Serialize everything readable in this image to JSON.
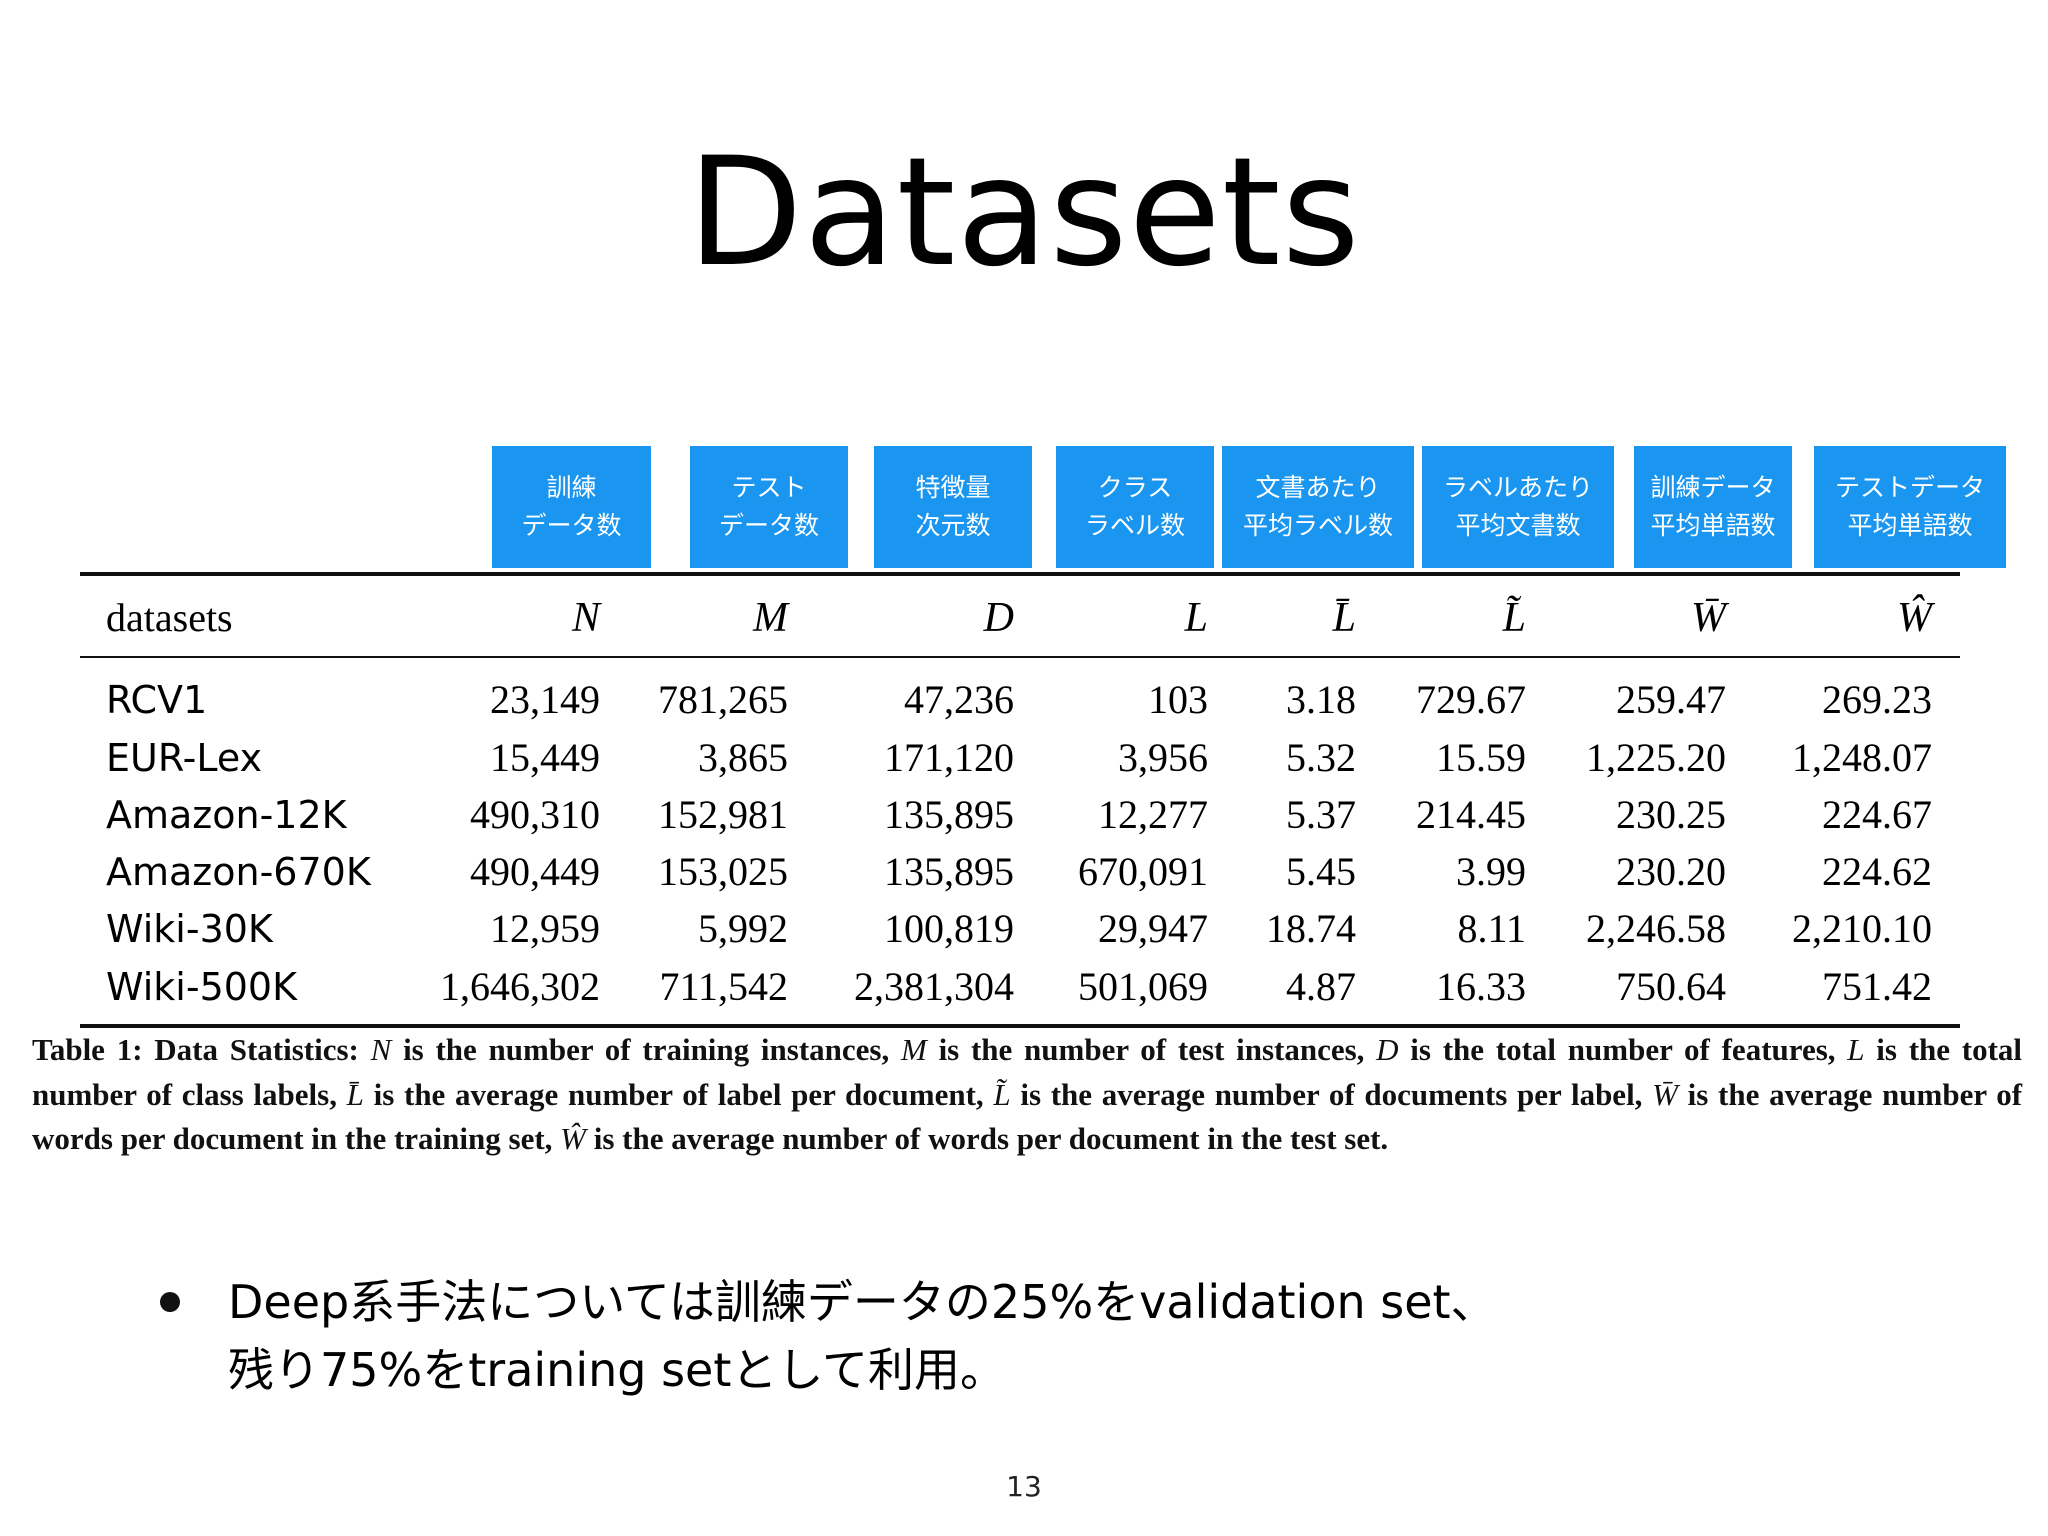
{
  "slide": {
    "title": "Datasets",
    "page_number": "13"
  },
  "annotations": [
    {
      "line1": "訓練",
      "line2": "データ数"
    },
    {
      "line1": "テスト",
      "line2": "データ数"
    },
    {
      "line1": "特徴量",
      "line2": "次元数"
    },
    {
      "line1": "クラス",
      "line2": "ラベル数"
    },
    {
      "line1": "文書あたり",
      "line2": "平均ラベル数"
    },
    {
      "line1": "ラベルあたり",
      "line2": "平均文書数"
    },
    {
      "line1": "訓練データ",
      "line2": "平均単語数"
    },
    {
      "line1": "テストデータ",
      "line2": "平均単語数"
    }
  ],
  "table": {
    "headers": [
      "datasets",
      "N",
      "M",
      "D",
      "L",
      "L̄",
      "L̃",
      "W̄",
      "Ŵ"
    ],
    "rows": [
      [
        "RCV1",
        "23,149",
        "781,265",
        "47,236",
        "103",
        "3.18",
        "729.67",
        "259.47",
        "269.23"
      ],
      [
        "EUR-Lex",
        "15,449",
        "3,865",
        "171,120",
        "3,956",
        "5.32",
        "15.59",
        "1,225.20",
        "1,248.07"
      ],
      [
        "Amazon-12K",
        "490,310",
        "152,981",
        "135,895",
        "12,277",
        "5.37",
        "214.45",
        "230.25",
        "224.67"
      ],
      [
        "Amazon-670K",
        "490,449",
        "153,025",
        "135,895",
        "670,091",
        "5.45",
        "3.99",
        "230.20",
        "224.62"
      ],
      [
        "Wiki-30K",
        "12,959",
        "5,992",
        "100,819",
        "29,947",
        "18.74",
        "8.11",
        "2,246.58",
        "2,210.10"
      ],
      [
        "Wiki-500K",
        "1,646,302",
        "711,542",
        "2,381,304",
        "501,069",
        "4.87",
        "16.33",
        "750.64",
        "751.42"
      ]
    ]
  },
  "caption": {
    "label": "Table 1: Data Statistics:",
    "s_N": "N",
    "t1": "is the number of training instances,",
    "s_M": "M",
    "t2": "is the number of test instances,",
    "s_D": "D",
    "t3": "is the total number of features,",
    "s_L": "L",
    "t4": "is the total number of class labels,",
    "s_Lbar": "L̄",
    "t5": "is the average number of label per document,",
    "s_Ltilde": "L̃",
    "t6": "is the average number of documents per label,",
    "s_Wbar": "W̄",
    "t7": "is the average number of words per document in the training set,",
    "s_What": "Ŵ",
    "t8": "is the average number of words per document in the test set."
  },
  "bullet": {
    "line1": "Deep系手法については訓練データの25%をvalidation set、",
    "line2": "残り75%をtraining setとして利用。"
  }
}
